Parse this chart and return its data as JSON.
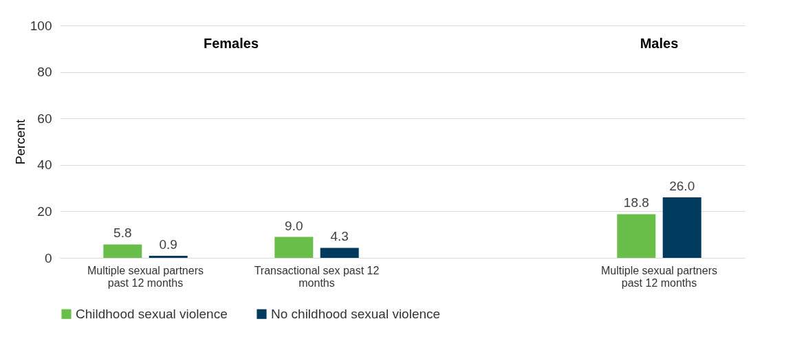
{
  "chart_data": {
    "type": "bar",
    "ylabel": "Percent",
    "categories": [
      "Multiple sexual partners past 12 months",
      "Transactional sex past 12 months",
      null,
      "Multiple sexual partners past 12 months"
    ],
    "series": [
      {
        "name": "Childhood sexual violence",
        "color": "#6abf4b",
        "values": [
          5.8,
          9.0,
          null,
          18.8
        ],
        "value_labels": [
          "5.8",
          "9.0",
          null,
          "18.8"
        ]
      },
      {
        "name": "No childhood sexual violence",
        "color": "#003a5c",
        "values": [
          0.9,
          4.3,
          null,
          26.0
        ],
        "value_labels": [
          "0.9",
          "4.3",
          null,
          "26.0"
        ]
      }
    ],
    "ylim": [
      0,
      100
    ],
    "yticks": [
      0,
      20,
      40,
      60,
      80,
      100
    ],
    "grid": "y",
    "legend": "bottom",
    "annotations": [
      "Females",
      "Males"
    ]
  }
}
